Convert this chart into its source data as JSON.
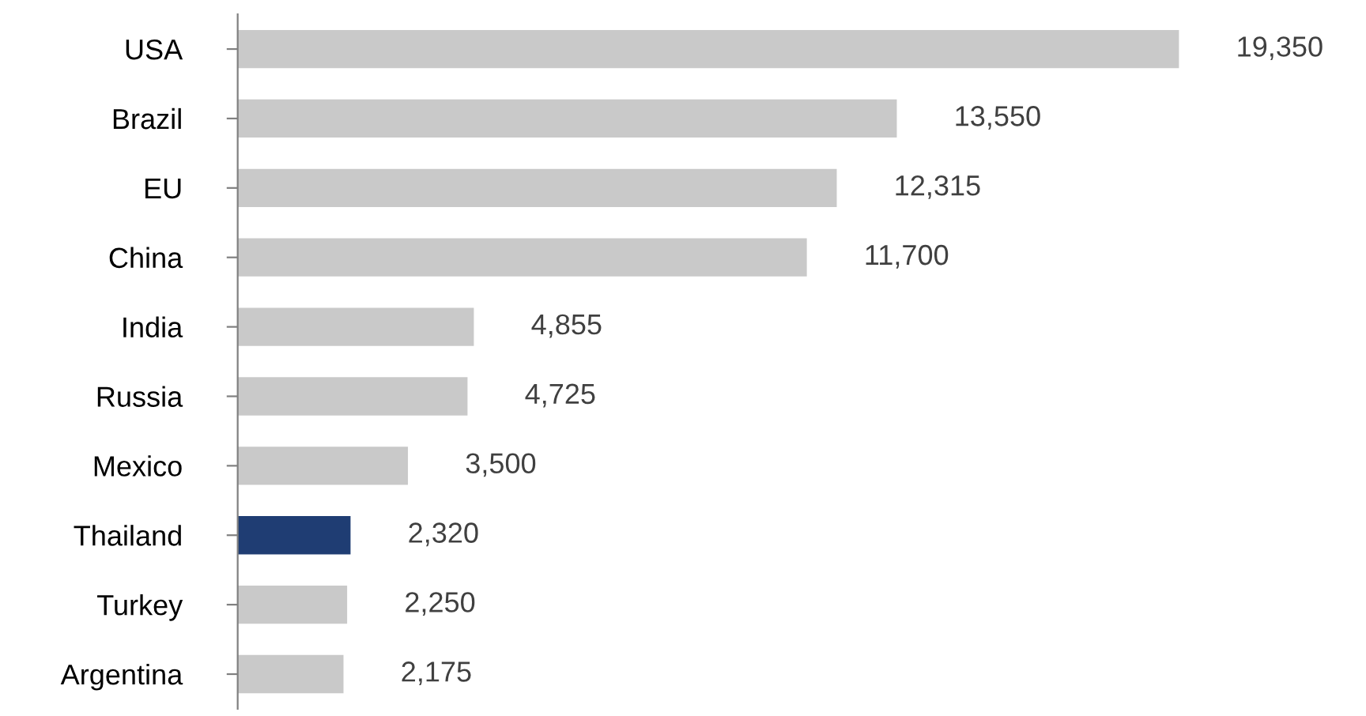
{
  "chart_data": {
    "type": "bar",
    "orientation": "horizontal",
    "categories": [
      "USA",
      "Brazil",
      "EU",
      "China",
      "India",
      "Russia",
      "Mexico",
      "Thailand",
      "Turkey",
      "Argentina"
    ],
    "values": [
      19350,
      13550,
      12315,
      11700,
      4855,
      4725,
      3500,
      2320,
      2250,
      2175
    ],
    "colors": [
      "#c9c9c9",
      "#c9c9c9",
      "#c9c9c9",
      "#c9c9c9",
      "#c9c9c9",
      "#c9c9c9",
      "#c9c9c9",
      "#1f3d73",
      "#c9c9c9",
      "#c9c9c9"
    ],
    "value_labels": [
      "19,350",
      "13,550",
      "12,315",
      "11,700",
      "4,855",
      "4,725",
      "3,500",
      "2,320",
      "2,250",
      "2,175"
    ]
  }
}
